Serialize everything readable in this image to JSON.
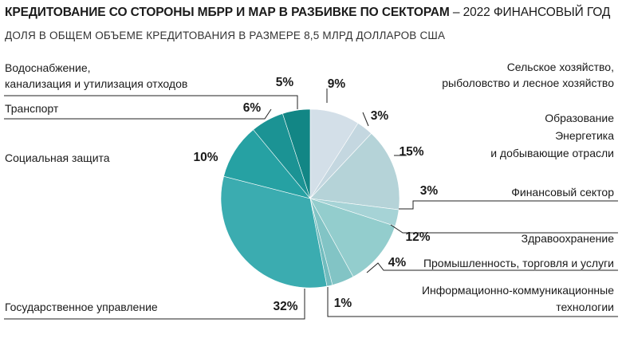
{
  "title": "КРЕДИТОВАНИЕ СО СТОРОНЫ МБРР И МАР В РАЗБИВКЕ ПО СЕКТОРАМ",
  "title_suffix": "– 2022 ФИНАНСОВЫЙ ГОД",
  "subtitle": "ДОЛЯ В ОБЩЕМ ОБЪЕМЕ КРЕДИТОВАНИЯ В РАЗМЕРЕ 8,5 МЛРД ДОЛЛАРОВ США",
  "chart_data": {
    "type": "pie",
    "slices": [
      {
        "label": [
          "Сельское хозяйство,",
          "рыболовство и лесное хозяйство"
        ],
        "value": 9,
        "value_label": "9%",
        "color": "#d3dfe8"
      },
      {
        "label": [
          "Образование"
        ],
        "value": 3,
        "value_label": "3%",
        "color": "#c4d7e0"
      },
      {
        "label": [
          "Энергетика",
          "и добывающие отрасли"
        ],
        "value": 15,
        "value_label": "15%",
        "color": "#b5d3d8"
      },
      {
        "label": [
          "Финансовый сектор"
        ],
        "value": 3,
        "value_label": "3%",
        "color": "#a6d3d6"
      },
      {
        "label": [
          "Здравоохранение"
        ],
        "value": 12,
        "value_label": "12%",
        "color": "#93cdcd"
      },
      {
        "label": [
          "Промышленность, торговля и услуги"
        ],
        "value": 4,
        "value_label": "4%",
        "color": "#82c4c5"
      },
      {
        "label": [
          "Информационно-коммуникационные",
          "технологии"
        ],
        "value": 1,
        "value_label": "1%",
        "color": "#71bcbe"
      },
      {
        "label": [
          "Государственное управление"
        ],
        "value": 32,
        "value_label": "32%",
        "color": "#3bacb0"
      },
      {
        "label": [
          "Социальная защита"
        ],
        "value": 10,
        "value_label": "10%",
        "color": "#26a1a3"
      },
      {
        "label": [
          "Транспорт"
        ],
        "value": 6,
        "value_label": "6%",
        "color": "#1b9394"
      },
      {
        "label": [
          "Водоснабжение,",
          "канализация и утилизация отходов"
        ],
        "value": 5,
        "value_label": "5%",
        "color": "#128685"
      }
    ]
  }
}
